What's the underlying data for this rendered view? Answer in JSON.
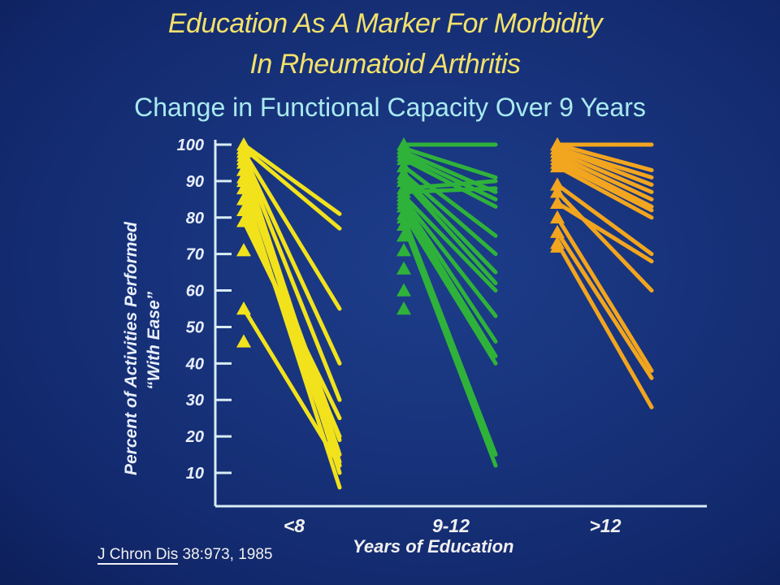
{
  "title_line1": "Education As A Marker For Morbidity",
  "title_line2": "In Rheumatoid Arthritis",
  "subtitle": "Change in Functional Capacity Over 9 Years",
  "citation_journal": "J Chron Dis",
  "citation_rest": " 38:973, 1985",
  "colors": {
    "background": "#17327a",
    "axis": "#d8ecf4",
    "lt8": "#f2e21c",
    "9to12": "#2fb23a",
    "gt12": "#f2a51e",
    "title": "#f3e16a",
    "subtitle": "#a9eaf0"
  },
  "chart_data": {
    "type": "line",
    "ylabel_line1": "Percent of Activities Performed",
    "ylabel_line2": "“With Ease”",
    "xlabel": "Years of Education",
    "ylim": [
      0,
      100
    ],
    "yticks": [
      10,
      20,
      30,
      40,
      50,
      60,
      70,
      80,
      90,
      100
    ],
    "grid": false,
    "legend": "none",
    "categories": [
      "<8",
      "9-12",
      ">12"
    ],
    "groups": [
      {
        "category": "<8",
        "color": "#f2e21c",
        "baseline_only": [
          71,
          46
        ],
        "pairs": [
          [
            100,
            81
          ],
          [
            99,
            77
          ],
          [
            98,
            55
          ],
          [
            97,
            40
          ],
          [
            96,
            30
          ],
          [
            95,
            15
          ],
          [
            93,
            10
          ],
          [
            91,
            13
          ],
          [
            90,
            19
          ],
          [
            88,
            6
          ],
          [
            85,
            12
          ],
          [
            82,
            20
          ],
          [
            79,
            25
          ],
          [
            55,
            12
          ]
        ]
      },
      {
        "category": "9-12",
        "color": "#2fb23a",
        "baseline_only": [
          55,
          60,
          66,
          71,
          75
        ],
        "pairs": [
          [
            100,
            100
          ],
          [
            99,
            91
          ],
          [
            98,
            87
          ],
          [
            97,
            85
          ],
          [
            96,
            83
          ],
          [
            94,
            75
          ],
          [
            92,
            70
          ],
          [
            91,
            65
          ],
          [
            90,
            62
          ],
          [
            88,
            90
          ],
          [
            87,
            88
          ],
          [
            86,
            60
          ],
          [
            85,
            53
          ],
          [
            84,
            46
          ],
          [
            83,
            42
          ],
          [
            81,
            40
          ],
          [
            80,
            15
          ],
          [
            78,
            12
          ]
        ]
      },
      {
        "category": ">12",
        "color": "#f2a51e",
        "baseline_only": [
          72
        ],
        "pairs": [
          [
            100,
            100
          ],
          [
            100,
            93
          ],
          [
            99,
            91
          ],
          [
            99,
            89
          ],
          [
            98,
            87
          ],
          [
            97,
            85
          ],
          [
            96,
            83
          ],
          [
            95,
            82
          ],
          [
            94,
            80
          ],
          [
            89,
            70
          ],
          [
            87,
            60
          ],
          [
            84,
            68
          ],
          [
            80,
            38
          ],
          [
            76,
            36
          ],
          [
            73,
            28
          ]
        ]
      }
    ]
  }
}
